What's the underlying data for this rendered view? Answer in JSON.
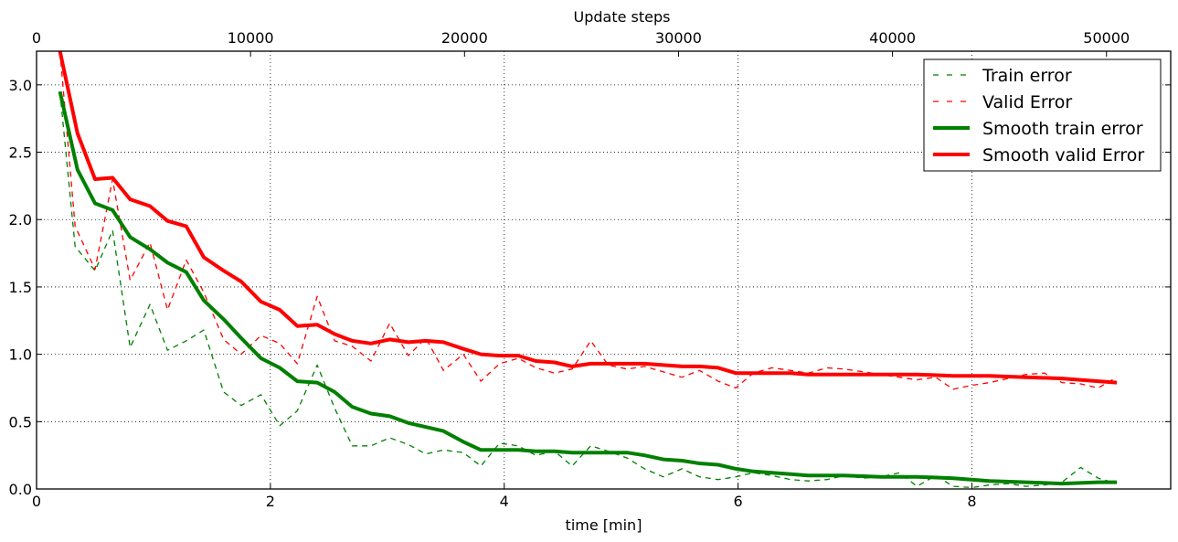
{
  "chart_data": {
    "type": "line",
    "xlabel": "time [min]",
    "top_xlabel": "Update steps",
    "ylabel": "",
    "xlim": [
      0,
      9.7
    ],
    "ylim": [
      0,
      3.25
    ],
    "top_xlim": [
      0,
      53000
    ],
    "grid": true,
    "legend_position": "top-right",
    "x_ticks": [
      0,
      2,
      4,
      6,
      8
    ],
    "x_tick_labels": [
      "0",
      "2",
      "4",
      "6",
      "8"
    ],
    "y_ticks": [
      0,
      0.5,
      1.0,
      1.5,
      2.0,
      2.5,
      3.0
    ],
    "y_tick_labels": [
      "0.0",
      "0.5",
      "1.0",
      "1.5",
      "2.0",
      "2.5",
      "3.0"
    ],
    "top_ticks": [
      0,
      10000,
      20000,
      30000,
      40000,
      50000
    ],
    "top_tick_labels": [
      "0",
      "10000",
      "20000",
      "30000",
      "40000",
      "50000"
    ],
    "series": [
      {
        "name": "Train error",
        "color": "#008000",
        "style": "dashed",
        "x": [
          0.2,
          0.33,
          0.5,
          0.65,
          0.8,
          0.97,
          1.12,
          1.28,
          1.43,
          1.6,
          1.75,
          1.92,
          2.08,
          2.23,
          2.4,
          2.55,
          2.7,
          2.86,
          3.02,
          3.18,
          3.33,
          3.48,
          3.65,
          3.8,
          3.96,
          4.12,
          4.27,
          4.43,
          4.58,
          4.74,
          4.89,
          5.05,
          5.2,
          5.36,
          5.52,
          5.67,
          5.83,
          5.98,
          6.13,
          6.29,
          6.45,
          6.6,
          6.76,
          6.91,
          7.07,
          7.22,
          7.38,
          7.53,
          7.69,
          7.84,
          8.0,
          8.15,
          8.31,
          8.46,
          8.62,
          8.77,
          8.93,
          9.08,
          9.24
        ],
        "y": [
          2.95,
          1.8,
          1.62,
          1.92,
          1.05,
          1.37,
          1.03,
          1.1,
          1.18,
          0.72,
          0.62,
          0.7,
          0.47,
          0.58,
          0.92,
          0.6,
          0.32,
          0.32,
          0.38,
          0.33,
          0.26,
          0.29,
          0.27,
          0.17,
          0.34,
          0.32,
          0.25,
          0.28,
          0.17,
          0.32,
          0.28,
          0.23,
          0.15,
          0.09,
          0.15,
          0.09,
          0.07,
          0.09,
          0.12,
          0.1,
          0.07,
          0.06,
          0.07,
          0.1,
          0.08,
          0.09,
          0.12,
          0.02,
          0.1,
          0.02,
          0.01,
          0.03,
          0.04,
          0.02,
          0.03,
          0.05,
          0.16,
          0.08,
          0.04
        ]
      },
      {
        "name": "Valid Error",
        "color": "#ff0000",
        "style": "dashed",
        "x": [
          0.2,
          0.33,
          0.5,
          0.65,
          0.8,
          0.97,
          1.12,
          1.28,
          1.43,
          1.6,
          1.75,
          1.92,
          2.08,
          2.23,
          2.4,
          2.55,
          2.7,
          2.86,
          3.02,
          3.18,
          3.33,
          3.48,
          3.65,
          3.8,
          3.96,
          4.12,
          4.27,
          4.43,
          4.58,
          4.74,
          4.89,
          5.05,
          5.2,
          5.36,
          5.52,
          5.67,
          5.83,
          5.98,
          6.13,
          6.29,
          6.45,
          6.6,
          6.76,
          6.91,
          7.07,
          7.22,
          7.38,
          7.53,
          7.69,
          7.84,
          8.0,
          8.15,
          8.31,
          8.46,
          8.62,
          8.77,
          8.93,
          9.08,
          9.24
        ],
        "y": [
          3.25,
          1.95,
          1.63,
          2.3,
          1.55,
          1.83,
          1.33,
          1.7,
          1.46,
          1.11,
          1.0,
          1.14,
          1.08,
          0.93,
          1.43,
          1.1,
          1.06,
          0.95,
          1.23,
          0.99,
          1.12,
          0.88,
          1.0,
          0.8,
          0.93,
          0.97,
          0.9,
          0.86,
          0.89,
          1.1,
          0.92,
          0.89,
          0.91,
          0.87,
          0.83,
          0.88,
          0.8,
          0.75,
          0.86,
          0.9,
          0.88,
          0.86,
          0.9,
          0.89,
          0.87,
          0.85,
          0.83,
          0.81,
          0.83,
          0.74,
          0.77,
          0.79,
          0.82,
          0.85,
          0.86,
          0.79,
          0.78,
          0.75,
          0.83
        ]
      },
      {
        "name": "Smooth train error",
        "color": "#008000",
        "style": "solid",
        "x": [
          0.2,
          0.35,
          0.5,
          0.65,
          0.8,
          0.97,
          1.12,
          1.28,
          1.43,
          1.6,
          1.75,
          1.92,
          2.08,
          2.23,
          2.4,
          2.55,
          2.7,
          2.86,
          3.02,
          3.18,
          3.33,
          3.48,
          3.65,
          3.8,
          3.96,
          4.12,
          4.27,
          4.43,
          4.58,
          4.74,
          4.89,
          5.05,
          5.2,
          5.36,
          5.52,
          5.67,
          5.83,
          5.98,
          6.13,
          6.29,
          6.45,
          6.6,
          6.91,
          7.22,
          7.53,
          7.84,
          8.15,
          8.46,
          8.77,
          9.08,
          9.24
        ],
        "y": [
          2.95,
          2.37,
          2.12,
          2.07,
          1.87,
          1.78,
          1.68,
          1.61,
          1.4,
          1.26,
          1.12,
          0.97,
          0.9,
          0.8,
          0.79,
          0.72,
          0.61,
          0.56,
          0.54,
          0.49,
          0.46,
          0.43,
          0.35,
          0.29,
          0.29,
          0.29,
          0.28,
          0.28,
          0.27,
          0.27,
          0.27,
          0.27,
          0.25,
          0.22,
          0.21,
          0.19,
          0.18,
          0.15,
          0.13,
          0.12,
          0.11,
          0.1,
          0.1,
          0.09,
          0.09,
          0.08,
          0.06,
          0.05,
          0.04,
          0.05,
          0.05
        ]
      },
      {
        "name": "Smooth valid Error",
        "color": "#ff0000",
        "style": "solid",
        "x": [
          0.2,
          0.35,
          0.5,
          0.65,
          0.8,
          0.97,
          1.12,
          1.28,
          1.43,
          1.6,
          1.75,
          1.92,
          2.08,
          2.23,
          2.4,
          2.55,
          2.7,
          2.86,
          3.02,
          3.18,
          3.33,
          3.48,
          3.65,
          3.8,
          3.96,
          4.12,
          4.27,
          4.43,
          4.58,
          4.74,
          4.89,
          5.05,
          5.2,
          5.36,
          5.52,
          5.67,
          5.83,
          5.98,
          6.13,
          6.29,
          6.45,
          6.6,
          6.91,
          7.22,
          7.53,
          7.84,
          8.15,
          8.46,
          8.77,
          9.08,
          9.24
        ],
        "y": [
          3.25,
          2.64,
          2.3,
          2.31,
          2.15,
          2.1,
          1.99,
          1.95,
          1.72,
          1.62,
          1.54,
          1.39,
          1.33,
          1.21,
          1.22,
          1.15,
          1.1,
          1.08,
          1.11,
          1.09,
          1.1,
          1.09,
          1.04,
          1.0,
          0.99,
          0.99,
          0.95,
          0.94,
          0.91,
          0.93,
          0.93,
          0.93,
          0.93,
          0.92,
          0.91,
          0.91,
          0.9,
          0.86,
          0.86,
          0.86,
          0.86,
          0.85,
          0.85,
          0.85,
          0.85,
          0.84,
          0.84,
          0.83,
          0.82,
          0.8,
          0.79
        ]
      }
    ]
  }
}
